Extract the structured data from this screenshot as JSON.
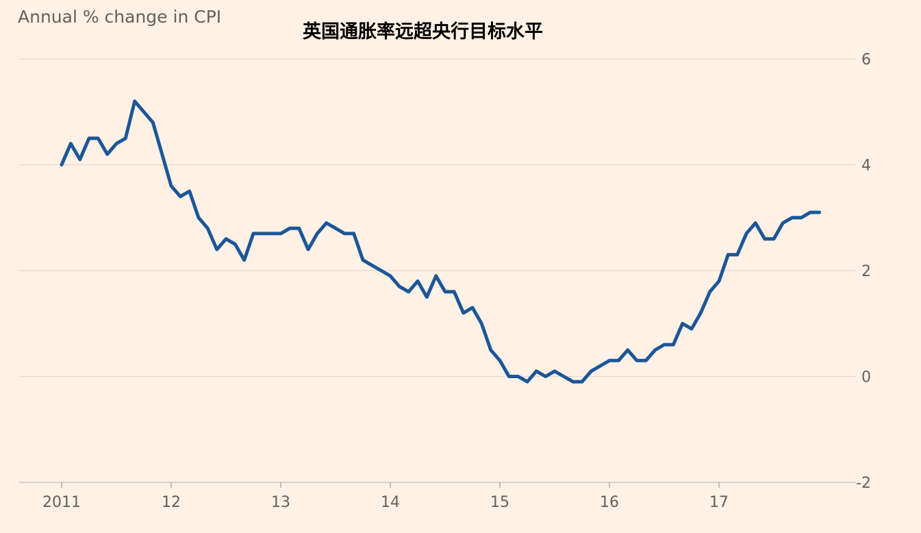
{
  "chart_data": {
    "type": "line",
    "title": "英国通胀率远超央行目标水平",
    "ylabel": "Annual % change in CPI",
    "xlabel": "",
    "ylim": [
      -2,
      6
    ],
    "yticks": [
      6,
      4,
      2,
      0,
      -2
    ],
    "xlim": [
      2010.62,
      2018.06
    ],
    "xticks": [
      {
        "value": 2011.0,
        "label": "2011"
      },
      {
        "value": 2012.0,
        "label": "12"
      },
      {
        "value": 2013.0,
        "label": "13"
      },
      {
        "value": 2014.0,
        "label": "14"
      },
      {
        "value": 2015.0,
        "label": "15"
      },
      {
        "value": 2016.0,
        "label": "16"
      },
      {
        "value": 2017.0,
        "label": "17"
      }
    ],
    "grid": true,
    "color": "#1c5698",
    "series": [
      {
        "name": "",
        "x": [
          2011.0,
          2011.083,
          2011.167,
          2011.25,
          2011.333,
          2011.417,
          2011.5,
          2011.583,
          2011.667,
          2011.75,
          2011.833,
          2011.917,
          2012.0,
          2012.083,
          2012.167,
          2012.25,
          2012.333,
          2012.417,
          2012.5,
          2012.583,
          2012.667,
          2012.75,
          2012.833,
          2012.917,
          2013.0,
          2013.083,
          2013.167,
          2013.25,
          2013.333,
          2013.417,
          2013.5,
          2013.583,
          2013.667,
          2013.75,
          2013.833,
          2013.917,
          2014.0,
          2014.083,
          2014.167,
          2014.25,
          2014.333,
          2014.417,
          2014.5,
          2014.583,
          2014.667,
          2014.75,
          2014.833,
          2014.917,
          2015.0,
          2015.083,
          2015.167,
          2015.25,
          2015.333,
          2015.417,
          2015.5,
          2015.583,
          2015.667,
          2015.75,
          2015.833,
          2015.917,
          2016.0,
          2016.083,
          2016.167,
          2016.25,
          2016.333,
          2016.417,
          2016.5,
          2016.583,
          2016.667,
          2016.75,
          2016.833,
          2016.917,
          2017.0,
          2017.083,
          2017.167,
          2017.25,
          2017.333,
          2017.417,
          2017.5,
          2017.583,
          2017.667,
          2017.75,
          2017.833,
          2017.917
        ],
        "y": [
          4.0,
          4.4,
          4.1,
          4.5,
          4.5,
          4.2,
          4.4,
          4.5,
          5.2,
          5.0,
          4.8,
          4.2,
          3.6,
          3.4,
          3.5,
          3.0,
          2.8,
          2.4,
          2.6,
          2.5,
          2.2,
          2.7,
          2.7,
          2.7,
          2.7,
          2.8,
          2.8,
          2.4,
          2.7,
          2.9,
          2.8,
          2.7,
          2.7,
          2.2,
          2.1,
          2.0,
          1.9,
          1.7,
          1.6,
          1.8,
          1.5,
          1.9,
          1.6,
          1.6,
          1.2,
          1.3,
          1.0,
          0.5,
          0.3,
          0.0,
          0.0,
          -0.1,
          0.1,
          0.0,
          0.1,
          0.0,
          -0.1,
          -0.1,
          0.1,
          0.2,
          0.3,
          0.3,
          0.5,
          0.3,
          0.3,
          0.5,
          0.6,
          0.6,
          1.0,
          0.9,
          1.2,
          1.6,
          1.8,
          2.3,
          2.3,
          2.7,
          2.9,
          2.6,
          2.6,
          2.9,
          3.0,
          3.0,
          3.1,
          3.1
        ]
      }
    ]
  }
}
